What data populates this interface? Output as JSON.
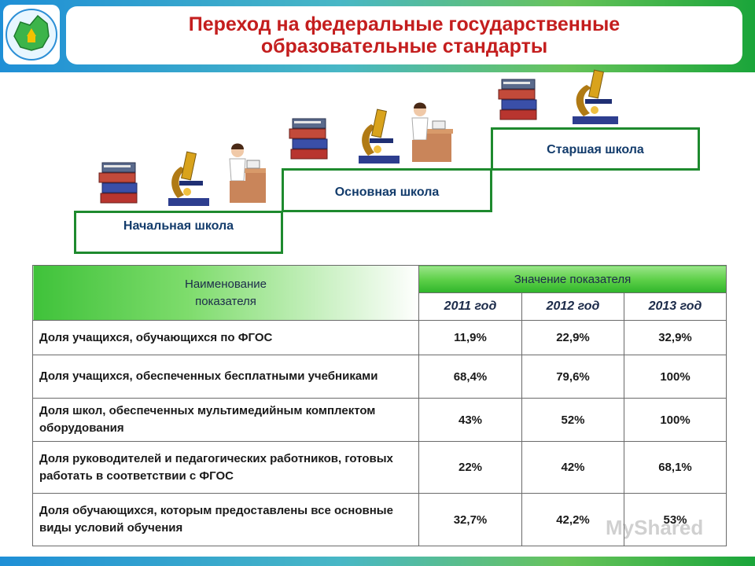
{
  "header": {
    "title_line1": "Переход на федеральные государственные",
    "title_line2": "образовательные стандарты"
  },
  "steps": [
    {
      "label": "Начальная школа"
    },
    {
      "label": "Основная школа"
    },
    {
      "label": "Старшая школа"
    }
  ],
  "table": {
    "col_name_header": "Наименование показателя",
    "col_value_header": "Значение показателя",
    "years": [
      "2011 год",
      "2012 год",
      "2013 год"
    ],
    "rows": [
      {
        "name": "Доля учащихся, обучающихся по ФГОС",
        "values": [
          "11,9%",
          "22,9%",
          "32,9%"
        ]
      },
      {
        "name": "Доля учащихся, обеспеченных бесплатными учебниками",
        "values": [
          "68,4%",
          "79,6%",
          "100%"
        ]
      },
      {
        "name": "Доля школ, обеспеченных мультимедийным комплектом оборудования",
        "values": [
          "43%",
          "52%",
          "100%"
        ]
      },
      {
        "name": "Доля руководителей и педагогических работников, готовых работать в соответствии с ФГОС",
        "values": [
          "22%",
          "42%",
          "68,1%"
        ]
      },
      {
        "name": "Доля обучающихся, которым предоставлены все основные виды условий обучения",
        "values": [
          "32,7%",
          "42,2%",
          "53%"
        ]
      }
    ]
  },
  "watermark": "MyShared",
  "icons": {
    "logo": "region-map-logo-icon",
    "books": "books-stack-icon",
    "microscope": "microscope-icon",
    "student": "student-at-desk-icon"
  },
  "colors": {
    "title_red": "#c41e1e",
    "step_border": "#1e8a2e",
    "header_green": "#3fc23a",
    "label_navy": "#123b6b"
  }
}
